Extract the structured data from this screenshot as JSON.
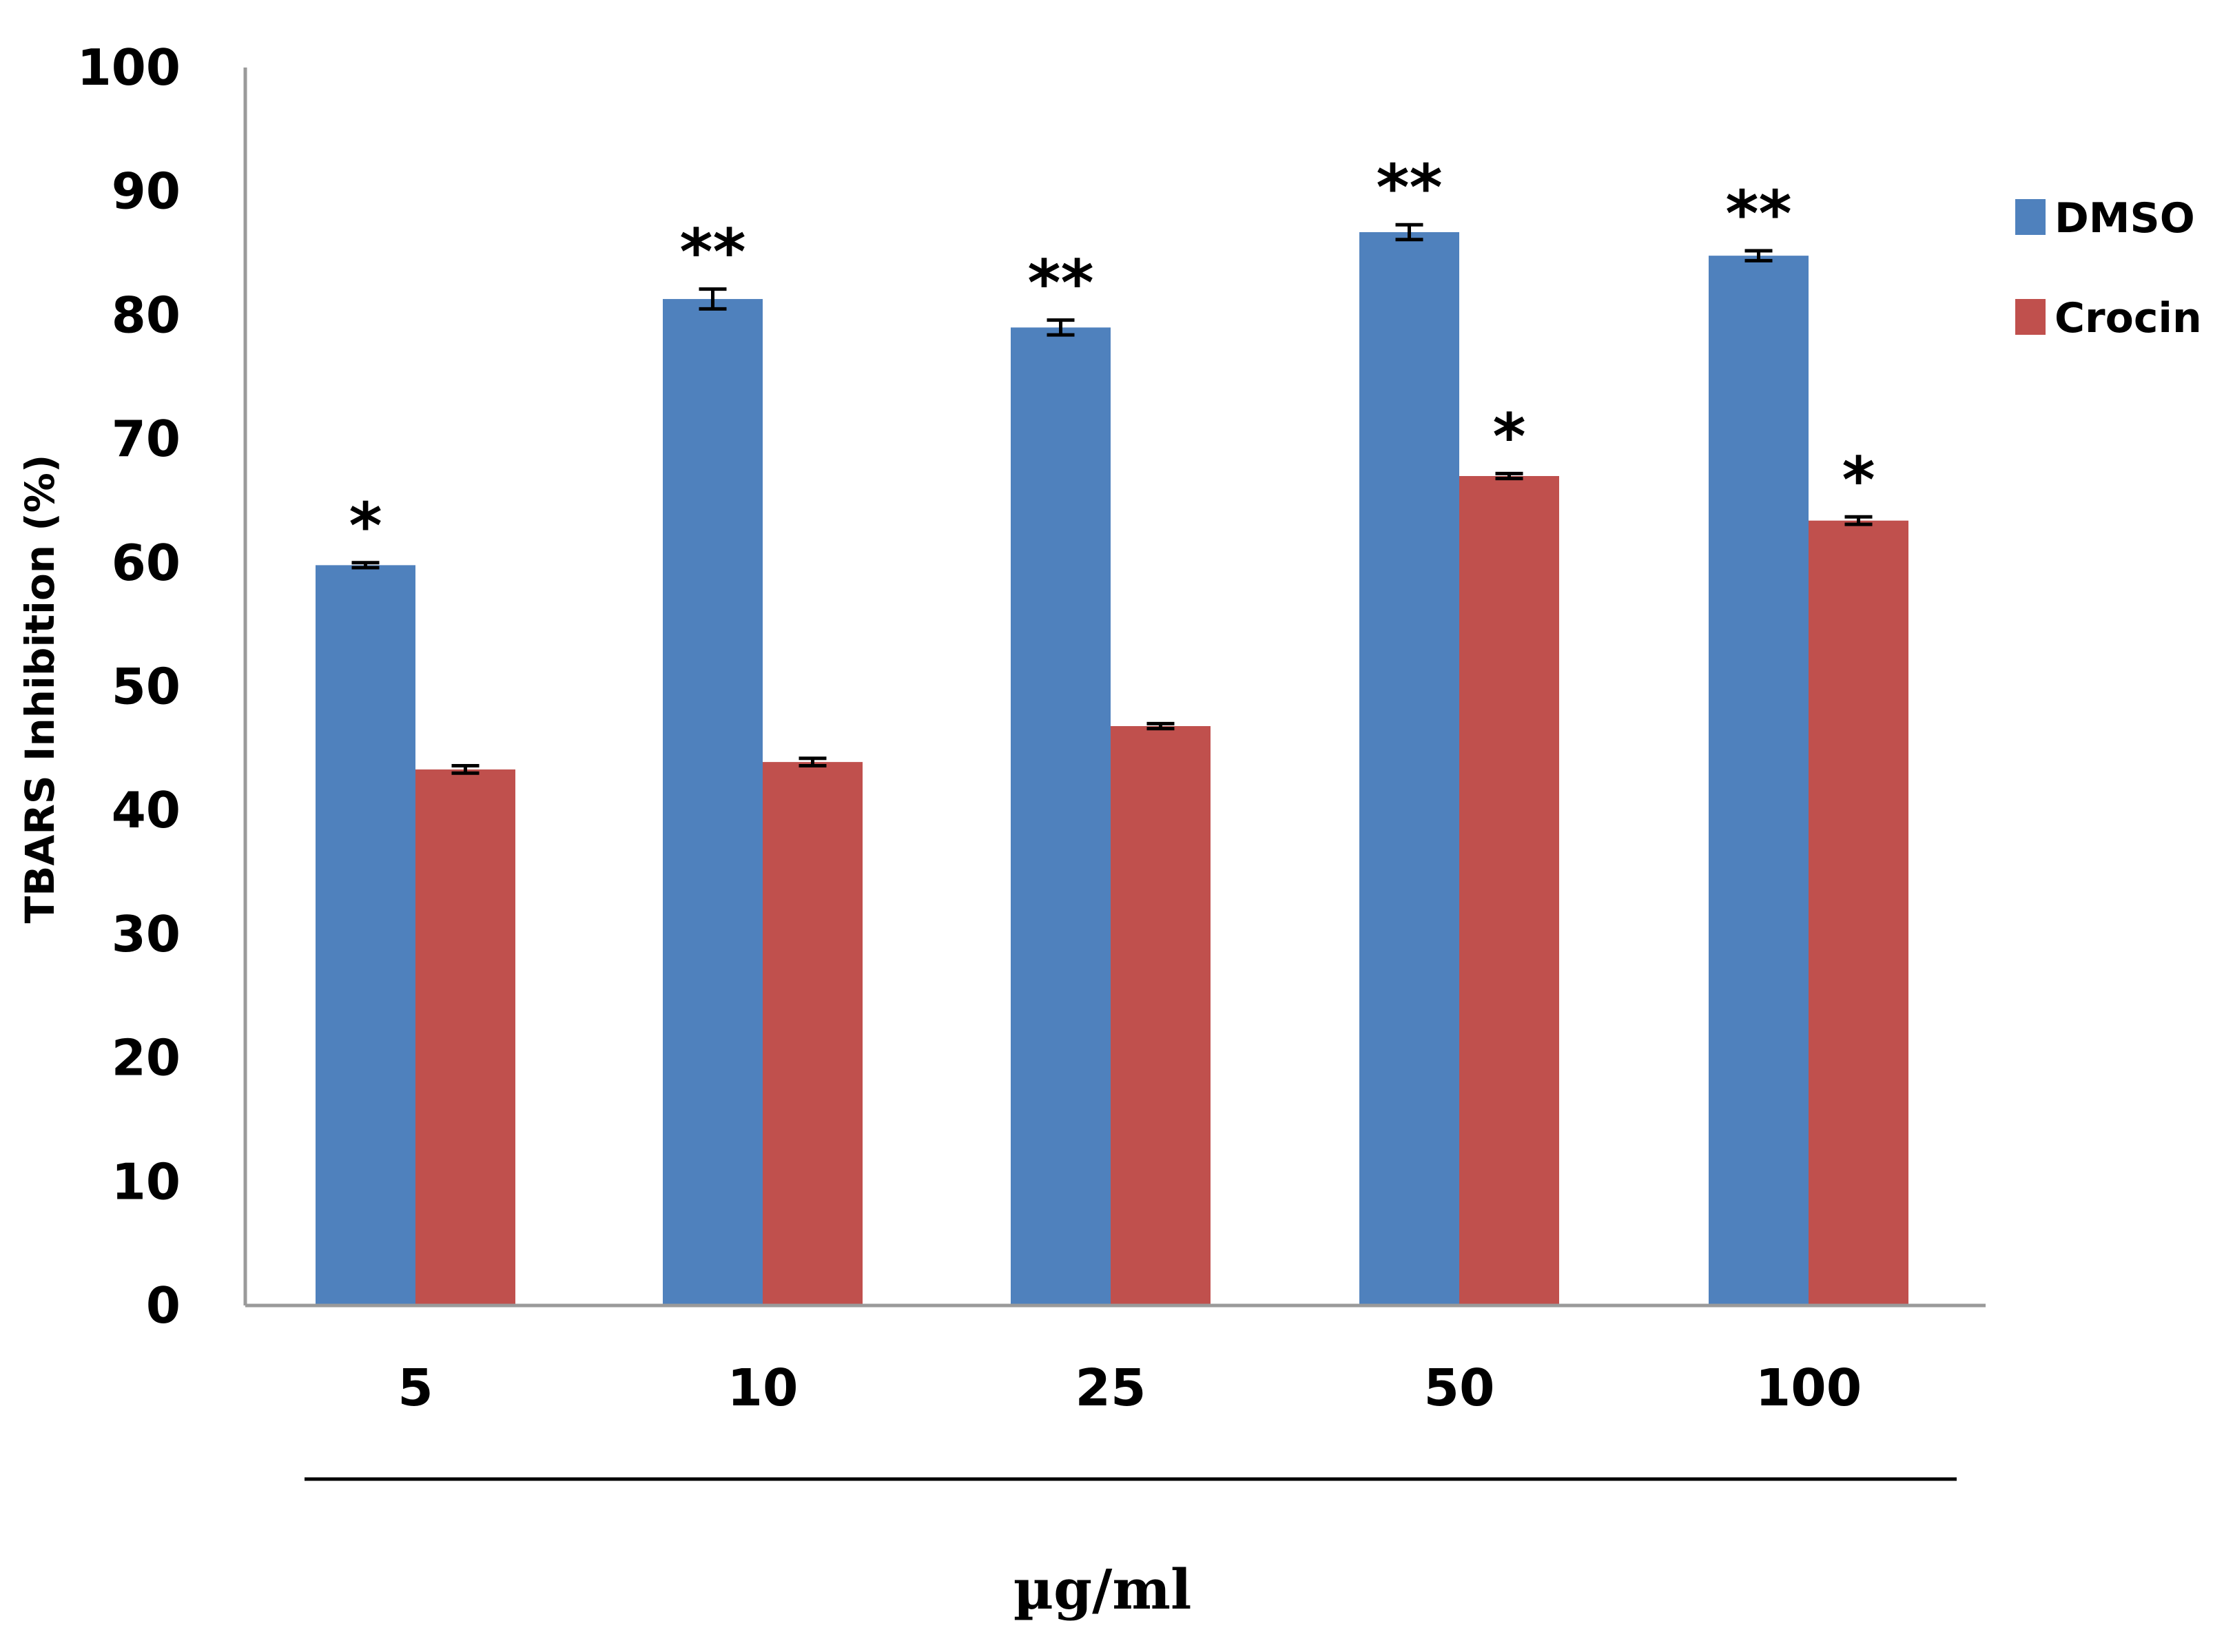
{
  "chart_data": {
    "type": "bar",
    "title": "",
    "xlabel": "µg/ml",
    "ylabel": "TBARS Inhibition (%)",
    "ylim": [
      0,
      100
    ],
    "yticks": [
      "0",
      "10",
      "20",
      "30",
      "40",
      "50",
      "60",
      "70",
      "80",
      "90",
      "100"
    ],
    "categories": [
      "5",
      "10",
      "25",
      "50",
      "100"
    ],
    "series": [
      {
        "name": "DMSO",
        "color": "#4F81BD",
        "values": [
          59.8,
          81.3,
          79.0,
          86.7,
          84.8
        ],
        "errors": [
          0.2,
          0.8,
          0.6,
          0.6,
          0.4
        ],
        "significance": [
          "*",
          "**",
          "**",
          "**",
          "**"
        ]
      },
      {
        "name": "Crocin",
        "color": "#C0504D",
        "values": [
          43.3,
          43.9,
          46.8,
          67.0,
          63.4
        ],
        "errors": [
          0.3,
          0.3,
          0.2,
          0.2,
          0.3
        ],
        "significance": [
          "",
          "",
          "",
          "*",
          "*"
        ]
      }
    ],
    "legend_position": "right"
  }
}
